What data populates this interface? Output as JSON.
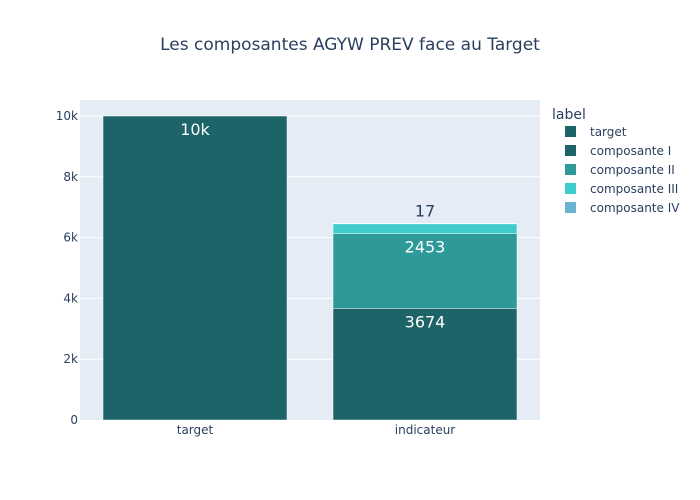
{
  "chart_data": {
    "type": "bar",
    "barmode": "stack",
    "title": "Les composantes AGYW PREV face au Target",
    "categories": [
      "target",
      "indicateur"
    ],
    "series": [
      {
        "name": "target",
        "values": [
          10000,
          null
        ],
        "color": "#1d6468",
        "text": [
          "10k",
          null
        ],
        "textposition": "inside"
      },
      {
        "name": "composante I",
        "values": [
          null,
          3674
        ],
        "color": "#1d6468",
        "text": [
          null,
          "3674"
        ],
        "textposition": "inside"
      },
      {
        "name": "composante II",
        "values": [
          null,
          2453
        ],
        "color": "#2e9999",
        "text": [
          null,
          "2453"
        ],
        "textposition": "inside"
      },
      {
        "name": "composante III",
        "values": [
          null,
          326
        ],
        "color": "#40cccc",
        "text": [
          null,
          null
        ],
        "textposition": "inside"
      },
      {
        "name": "composante IV",
        "values": [
          null,
          17
        ],
        "color": "#6db3d1",
        "text": [
          null,
          "17"
        ],
        "textposition": "outside"
      }
    ],
    "ylim": [
      0,
      10526
    ],
    "yticks": [
      0,
      2000,
      4000,
      6000,
      8000,
      10000
    ],
    "ytick_labels": [
      "0",
      "2k",
      "4k",
      "6k",
      "8k",
      "10k"
    ],
    "grid": true,
    "legend": {
      "title": "label",
      "position": "right"
    },
    "plot_bg": "#e5ecf6"
  }
}
